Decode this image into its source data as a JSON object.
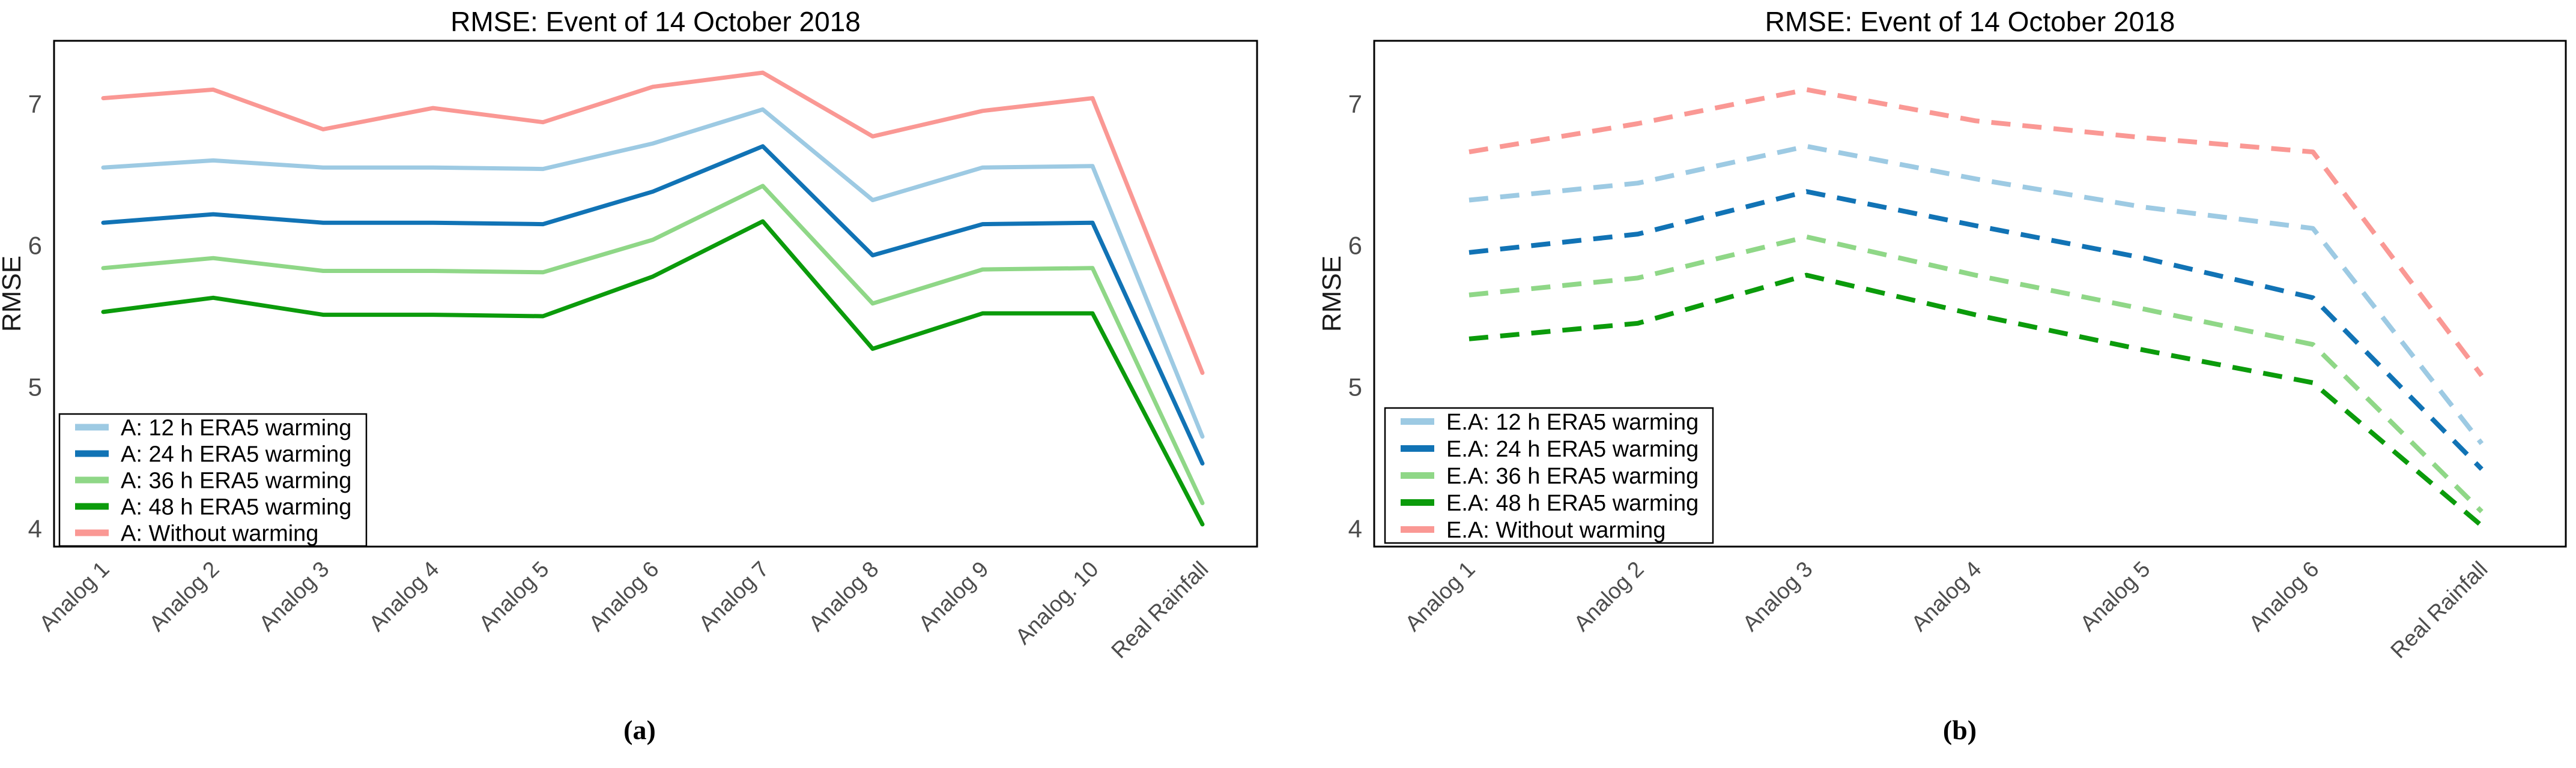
{
  "figure": {
    "background": "#ffffff",
    "text_color_title": "#000000",
    "text_color_ticks": "#4d4d4d",
    "axis_color": "#000000"
  },
  "chart_data": [
    {
      "id": "panel-a",
      "type": "line",
      "line_style": "solid",
      "caption": "(a)",
      "title": "RMSE: Event of 14 October 2018",
      "ylabel": "RMSE",
      "yticks": [
        "7",
        "6",
        "5",
        "4"
      ],
      "ylim": [
        3.87,
        7.45
      ],
      "grid": false,
      "legend_position": "lower left",
      "categories": [
        "Analog 1",
        "Analog 2",
        "Analog 3",
        "Analog 4",
        "Analog 5",
        "Analog 6",
        "Analog 7",
        "Analog 8",
        "Analog 9",
        "Analog. 10",
        "Real Rainfall"
      ],
      "series": [
        {
          "name": "A: 12 h ERA5 warming",
          "color": "#9dcae3",
          "values": [
            6.55,
            6.6,
            6.55,
            6.55,
            6.54,
            6.72,
            6.96,
            6.32,
            6.55,
            6.56,
            4.65
          ]
        },
        {
          "name": "A: 24 h ERA5 warming",
          "color": "#1173b5",
          "values": [
            6.16,
            6.22,
            6.16,
            6.16,
            6.15,
            6.38,
            6.7,
            5.93,
            6.15,
            6.16,
            4.46
          ]
        },
        {
          "name": "A: 36 h ERA5 warming",
          "color": "#8fd787",
          "values": [
            5.84,
            5.91,
            5.82,
            5.82,
            5.81,
            6.04,
            6.42,
            5.59,
            5.83,
            5.84,
            4.18
          ]
        },
        {
          "name": "A: 48 h ERA5 warming",
          "color": "#0b9b0b",
          "values": [
            5.53,
            5.63,
            5.51,
            5.51,
            5.5,
            5.78,
            6.17,
            5.27,
            5.52,
            5.52,
            4.03
          ]
        },
        {
          "name": "A: Without warming",
          "color": "#fa9894",
          "values": [
            7.04,
            7.1,
            6.82,
            6.97,
            6.87,
            7.12,
            7.22,
            6.77,
            6.95,
            7.04,
            5.1
          ]
        }
      ]
    },
    {
      "id": "panel-b",
      "type": "line",
      "line_style": "dashed",
      "caption": "(b)",
      "title": "RMSE: Event of 14 October 2018",
      "ylabel": "RMSE",
      "yticks": [
        "7",
        "6",
        "5",
        "4"
      ],
      "ylim": [
        3.87,
        7.45
      ],
      "grid": false,
      "legend_position": "lower left",
      "categories": [
        "Analog 1",
        "Analog 2",
        "Analog 3",
        "Analog 4",
        "Analog 5",
        "Analog 6",
        "Real Rainfall"
      ],
      "series": [
        {
          "name": "E.A: 12 h ERA5 warming",
          "color": "#9dcae3",
          "values": [
            6.32,
            6.44,
            6.7,
            6.47,
            6.27,
            6.12,
            4.6
          ]
        },
        {
          "name": "E.A: 24 h ERA5 warming",
          "color": "#1173b5",
          "values": [
            5.95,
            6.08,
            6.38,
            6.14,
            5.91,
            5.63,
            4.42
          ]
        },
        {
          "name": "E.A: 36 h ERA5 warming",
          "color": "#8fd787",
          "values": [
            5.65,
            5.77,
            6.06,
            5.79,
            5.55,
            5.3,
            4.12
          ]
        },
        {
          "name": "E.A: 48 h ERA5 warming",
          "color": "#0b9b0b",
          "values": [
            5.34,
            5.45,
            5.79,
            5.51,
            5.26,
            5.03,
            4.02
          ]
        },
        {
          "name": "E.A: Without warming",
          "color": "#fa9894",
          "values": [
            6.66,
            6.86,
            7.1,
            6.88,
            6.76,
            6.66,
            5.08
          ]
        }
      ]
    }
  ]
}
